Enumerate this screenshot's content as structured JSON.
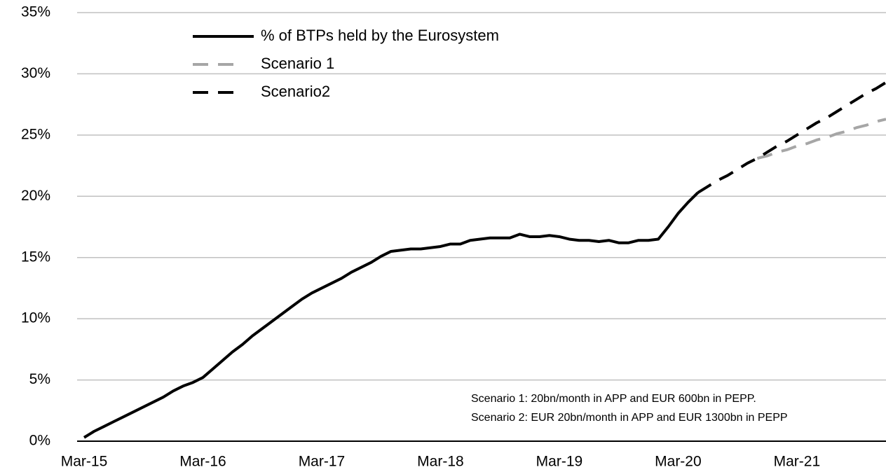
{
  "chart_data": {
    "type": "line",
    "categories": [
      "Mar-15",
      null,
      null,
      null,
      null,
      null,
      null,
      null,
      null,
      null,
      null,
      null,
      "Mar-16",
      null,
      null,
      null,
      null,
      null,
      null,
      null,
      null,
      null,
      null,
      null,
      "Mar-17",
      null,
      null,
      null,
      null,
      null,
      null,
      null,
      null,
      null,
      null,
      null,
      "Mar-18",
      null,
      null,
      null,
      null,
      null,
      null,
      null,
      null,
      null,
      null,
      null,
      "Mar-19",
      null,
      null,
      null,
      null,
      null,
      null,
      null,
      null,
      null,
      null,
      null,
      "Mar-20",
      null,
      null,
      null,
      null,
      null,
      null,
      null,
      null,
      null,
      null,
      null,
      "Mar-21",
      null,
      null,
      null,
      null,
      null,
      null,
      null,
      null,
      null
    ],
    "series": [
      {
        "name": "% of BTPs held by the Eurosystem",
        "color": "#000000",
        "style": "solid",
        "values": [
          0.3,
          0.8,
          1.2,
          1.6,
          2.0,
          2.4,
          2.8,
          3.2,
          3.6,
          4.1,
          4.5,
          4.8,
          5.2,
          5.9,
          6.6,
          7.3,
          7.9,
          8.6,
          9.2,
          9.8,
          10.4,
          11.0,
          11.6,
          12.1,
          12.5,
          12.9,
          13.3,
          13.8,
          14.2,
          14.6,
          15.1,
          15.5,
          15.6,
          15.7,
          15.7,
          15.8,
          15.9,
          16.1,
          16.1,
          16.4,
          16.5,
          16.6,
          16.6,
          16.6,
          16.9,
          16.7,
          16.7,
          16.8,
          16.7,
          16.5,
          16.4,
          16.4,
          16.3,
          16.4,
          16.2,
          16.2,
          16.4,
          16.4,
          16.5,
          17.5,
          18.6,
          19.5,
          20.3,
          null,
          null,
          null,
          null,
          null,
          null,
          null,
          null,
          null,
          null,
          null,
          null,
          null,
          null,
          null,
          null,
          null,
          null,
          null
        ]
      },
      {
        "name": "Scenario 1",
        "color": "#a6a6a6",
        "style": "dashed",
        "values": [
          null,
          null,
          null,
          null,
          null,
          null,
          null,
          null,
          null,
          null,
          null,
          null,
          null,
          null,
          null,
          null,
          null,
          null,
          null,
          null,
          null,
          null,
          null,
          null,
          null,
          null,
          null,
          null,
          null,
          null,
          null,
          null,
          null,
          null,
          null,
          null,
          null,
          null,
          null,
          null,
          null,
          null,
          null,
          null,
          null,
          null,
          null,
          null,
          null,
          null,
          null,
          null,
          null,
          null,
          null,
          null,
          null,
          null,
          null,
          null,
          null,
          null,
          null,
          null,
          null,
          null,
          null,
          null,
          23.1,
          23.3,
          23.6,
          23.8,
          24.1,
          24.3,
          24.6,
          24.8,
          25.1,
          25.3,
          25.6,
          25.8,
          26.1,
          26.3
        ]
      },
      {
        "name": "Scenario2",
        "color": "#000000",
        "style": "dashed",
        "values": [
          null,
          null,
          null,
          null,
          null,
          null,
          null,
          null,
          null,
          null,
          null,
          null,
          null,
          null,
          null,
          null,
          null,
          null,
          null,
          null,
          null,
          null,
          null,
          null,
          null,
          null,
          null,
          null,
          null,
          null,
          null,
          null,
          null,
          null,
          null,
          null,
          null,
          null,
          null,
          null,
          null,
          null,
          null,
          null,
          null,
          null,
          null,
          null,
          null,
          null,
          null,
          null,
          null,
          null,
          null,
          null,
          null,
          null,
          null,
          null,
          null,
          null,
          20.3,
          20.8,
          21.3,
          21.7,
          22.2,
          22.7,
          23.1,
          23.6,
          24.1,
          24.5,
          25.0,
          25.5,
          26.0,
          26.4,
          26.9,
          27.4,
          27.9,
          28.4,
          28.8,
          29.3
        ]
      }
    ],
    "ylim": [
      0,
      35
    ],
    "yticks": [
      {
        "value": 0,
        "label": "0%"
      },
      {
        "value": 5,
        "label": "5%"
      },
      {
        "value": 10,
        "label": "10%"
      },
      {
        "value": 15,
        "label": "15%"
      },
      {
        "value": 20,
        "label": "20%"
      },
      {
        "value": 25,
        "label": "25%"
      },
      {
        "value": 30,
        "label": "30%"
      },
      {
        "value": 35,
        "label": "35%"
      }
    ],
    "grid": true,
    "legend": "top-left",
    "annotations": [
      "Scenario 1: 20bn/month in APP and EUR 600bn in PEPP.",
      "Scenario 2: EUR 20bn/month in APP and EUR 1300bn in PEPP"
    ]
  }
}
